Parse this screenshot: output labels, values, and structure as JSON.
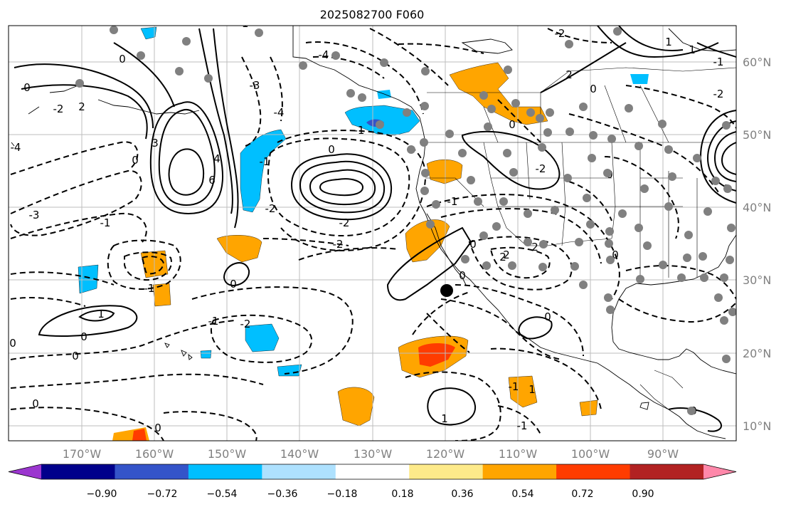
{
  "title": "2025082700 F060",
  "map": {
    "lon_range": [
      -180,
      -80
    ],
    "lat_range": [
      8,
      65
    ],
    "lon_ticks": [
      "170°W",
      "160°W",
      "150°W",
      "140°W",
      "130°W",
      "120°W",
      "110°W",
      "100°W",
      "90°W"
    ],
    "lat_ticks": [
      "60°N",
      "50°N",
      "40°N",
      "30°N",
      "20°N",
      "10°N"
    ],
    "gridlines": true,
    "contour_labels": [
      "-3",
      "0",
      "-1",
      "1",
      "-2",
      "2",
      "3",
      "4",
      "6",
      "0",
      "-1",
      "0",
      "-2",
      "-2",
      "-4",
      "-3",
      "-4",
      "-1",
      "0",
      "-1",
      "1",
      "2",
      "0",
      "0",
      "2",
      "0",
      "-1",
      "0",
      "0",
      "0",
      "-1",
      "0",
      "1",
      "-2",
      "-4",
      "0",
      "-1",
      "1",
      "-2",
      "0",
      "2",
      "1",
      "-1",
      "0",
      "0",
      "0",
      "1",
      "-2",
      "-2",
      "-1",
      "2",
      "-2",
      "0",
      "-1",
      "0"
    ],
    "marker": {
      "symbol": "black-dot",
      "lon": -119.7,
      "lat": 28.5
    },
    "station_symbol": "gray-dot"
  },
  "colorbar": {
    "ticks": [
      "−0.90",
      "−0.72",
      "−0.54",
      "−0.36",
      "−0.18",
      "0.18",
      "0.36",
      "0.54",
      "0.72",
      "0.90"
    ],
    "colors": [
      "#9b36cf",
      "#00008b",
      "#3454c9",
      "#00bfff",
      "#aee1fe",
      "#ffffff",
      "#fdea8a",
      "#ffa500",
      "#ff3c00",
      "#b22222",
      "#ff88aa"
    ],
    "extend": "both"
  }
}
